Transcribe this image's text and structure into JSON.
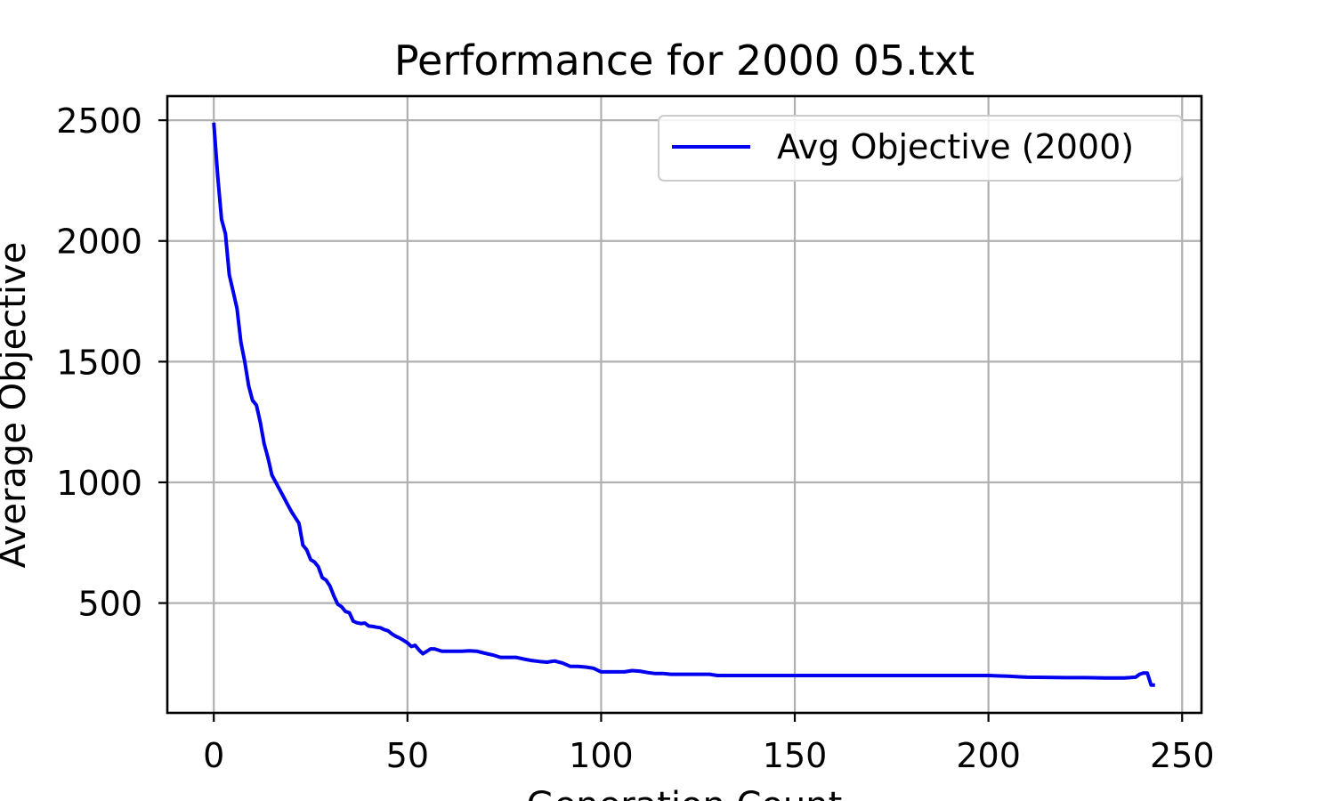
{
  "chart_data": {
    "type": "line",
    "title": "Performance for 2000 05.txt",
    "xlabel": "Generation Count",
    "ylabel": "Average Objective",
    "xlim": [
      -12,
      255
    ],
    "ylim": [
      45,
      2600
    ],
    "xticks": [
      0,
      50,
      100,
      150,
      200,
      250
    ],
    "yticks": [
      500,
      1000,
      1500,
      2000,
      2500
    ],
    "grid": true,
    "legend_position": "top-right",
    "series": [
      {
        "name": "Avg Objective (2000)",
        "color": "#0000ee",
        "x": [
          0,
          1,
          2,
          3,
          4,
          5,
          6,
          7,
          8,
          9,
          10,
          11,
          12,
          13,
          14,
          15,
          16,
          17,
          18,
          19,
          20,
          21,
          22,
          23,
          24,
          25,
          26,
          27,
          28,
          29,
          30,
          31,
          32,
          33,
          34,
          35,
          36,
          37,
          38,
          39,
          40,
          41,
          42,
          43,
          44,
          45,
          46,
          47,
          48,
          49,
          50,
          51,
          52,
          53,
          54,
          55,
          56,
          57,
          58,
          59,
          60,
          62,
          64,
          66,
          68,
          70,
          72,
          74,
          76,
          78,
          80,
          82,
          84,
          86,
          88,
          90,
          92,
          94,
          96,
          98,
          100,
          103,
          106,
          108,
          110,
          112,
          114,
          116,
          118,
          120,
          124,
          128,
          130,
          140,
          150,
          160,
          170,
          180,
          190,
          200,
          203,
          205,
          210,
          215,
          220,
          225,
          230,
          235,
          238,
          239,
          240,
          241,
          242,
          243
        ],
        "y": [
          2490,
          2270,
          2090,
          2030,
          1860,
          1790,
          1720,
          1580,
          1500,
          1400,
          1340,
          1320,
          1250,
          1160,
          1100,
          1030,
          1000,
          970,
          940,
          910,
          880,
          855,
          830,
          740,
          720,
          680,
          670,
          650,
          605,
          595,
          570,
          530,
          495,
          485,
          465,
          460,
          425,
          418,
          415,
          417,
          405,
          403,
          400,
          398,
          390,
          385,
          372,
          362,
          355,
          345,
          335,
          320,
          325,
          305,
          290,
          300,
          310,
          310,
          305,
          300,
          300,
          300,
          300,
          302,
          300,
          292,
          285,
          275,
          275,
          275,
          268,
          262,
          258,
          255,
          260,
          252,
          238,
          238,
          235,
          230,
          215,
          215,
          215,
          220,
          218,
          212,
          208,
          208,
          205,
          205,
          205,
          205,
          200,
          200,
          200,
          200,
          200,
          200,
          200,
          200,
          198,
          197,
          193,
          192,
          191,
          191,
          190,
          190,
          193,
          205,
          210,
          210,
          160,
          160
        ]
      }
    ]
  }
}
